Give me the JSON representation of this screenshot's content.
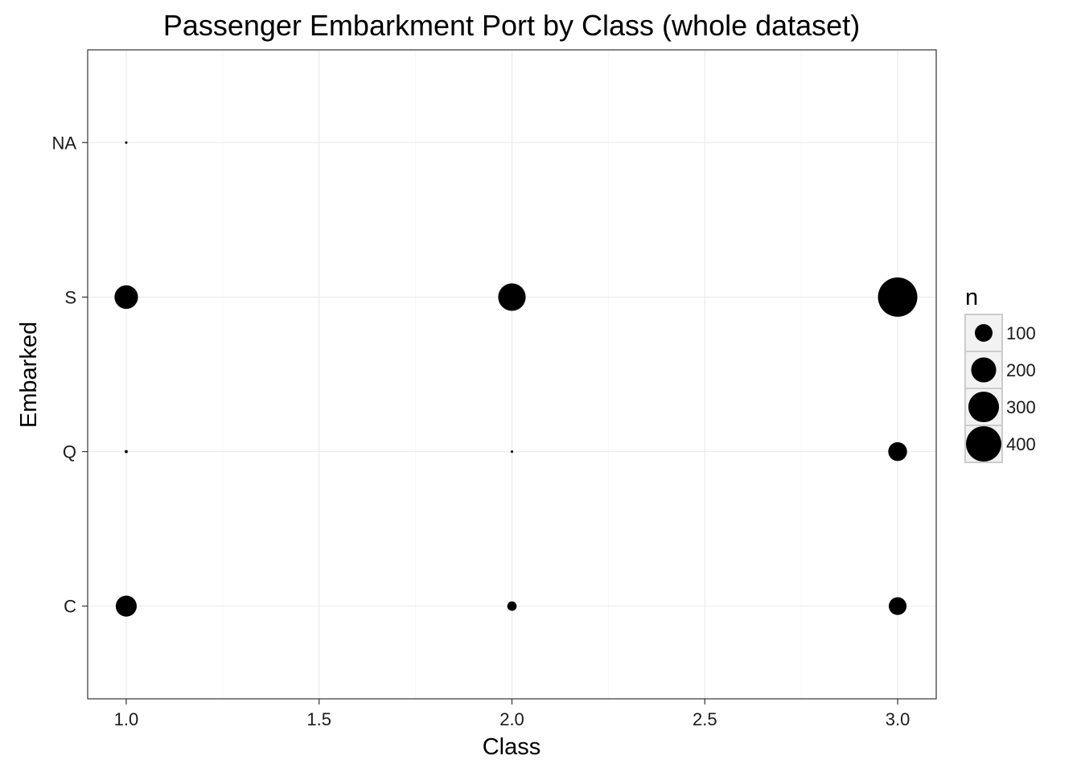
{
  "chart_data": {
    "type": "scatter",
    "title": "Passenger Embarkment Port by Class (whole dataset)",
    "xlabel": "Class",
    "ylabel": "Embarked",
    "xlim": [
      0.9,
      3.1
    ],
    "x_ticks": [
      "1.0",
      "1.5",
      "2.0",
      "2.5",
      "3.0"
    ],
    "y_categories": [
      "C",
      "Q",
      "S",
      "NA"
    ],
    "grid": true,
    "size_legend": {
      "title": "n",
      "position": "right",
      "entries": [
        {
          "label": "100",
          "n": 100
        },
        {
          "label": "200",
          "n": 200
        },
        {
          "label": "300",
          "n": 300
        },
        {
          "label": "400",
          "n": 400
        }
      ]
    },
    "points": [
      {
        "x": 1,
        "y": "NA",
        "n": 2
      },
      {
        "x": 1,
        "y": "S",
        "n": 177
      },
      {
        "x": 1,
        "y": "Q",
        "n": 3
      },
      {
        "x": 1,
        "y": "C",
        "n": 141
      },
      {
        "x": 2,
        "y": "S",
        "n": 242
      },
      {
        "x": 2,
        "y": "Q",
        "n": 2
      },
      {
        "x": 2,
        "y": "C",
        "n": 28
      },
      {
        "x": 3,
        "y": "S",
        "n": 495
      },
      {
        "x": 3,
        "y": "Q",
        "n": 113
      },
      {
        "x": 3,
        "y": "C",
        "n": 101
      }
    ],
    "colors": {
      "point": "#000000",
      "grid_major": "#ebebeb",
      "grid_minor": "#f5f5f5",
      "panel_border": "#333333",
      "legend_key_border": "#cccccc"
    }
  }
}
